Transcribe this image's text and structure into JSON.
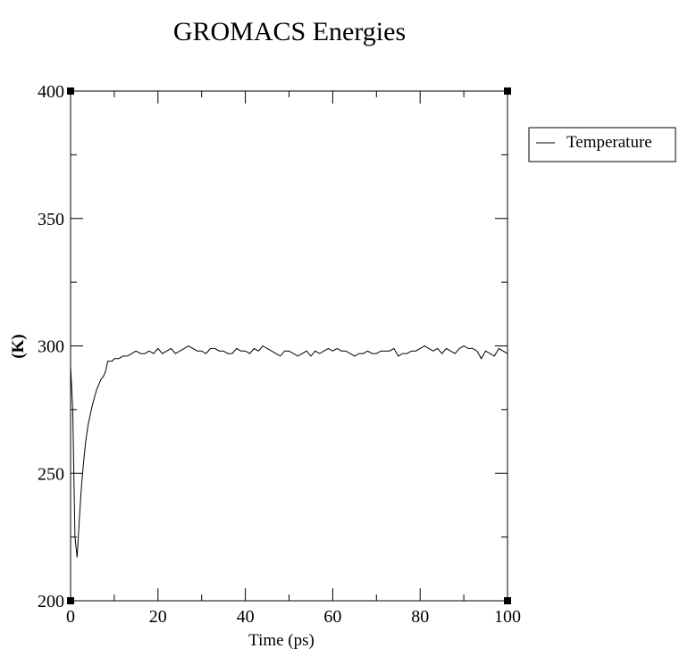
{
  "chart_data": {
    "type": "line",
    "title": "GROMACS Energies",
    "xlabel": "Time (ps)",
    "ylabel": "(K)",
    "xlim": [
      0,
      100
    ],
    "ylim": [
      200,
      400
    ],
    "xticks": [
      0,
      20,
      40,
      60,
      80,
      100
    ],
    "yticks": [
      200,
      250,
      300,
      350,
      400
    ],
    "x_minor_step": 10,
    "y_minor_step": 25,
    "grid": false,
    "legend_position": "right",
    "series": [
      {
        "name": "Temperature",
        "color": "#000000",
        "x": [
          0,
          0.5,
          1,
          1.5,
          2,
          2.5,
          3,
          3.5,
          4,
          4.5,
          5,
          5.5,
          6,
          6.5,
          7,
          7.5,
          8,
          8.5,
          9,
          9.5,
          10,
          11,
          12,
          13,
          14,
          15,
          16,
          17,
          18,
          19,
          20,
          21,
          22,
          23,
          24,
          25,
          26,
          27,
          28,
          29,
          30,
          31,
          32,
          33,
          34,
          35,
          36,
          37,
          38,
          39,
          40,
          41,
          42,
          43,
          44,
          45,
          46,
          47,
          48,
          49,
          50,
          51,
          52,
          53,
          54,
          55,
          56,
          57,
          58,
          59,
          60,
          61,
          62,
          63,
          64,
          65,
          66,
          67,
          68,
          69,
          70,
          71,
          72,
          73,
          74,
          75,
          76,
          77,
          78,
          79,
          80,
          81,
          82,
          83,
          84,
          85,
          86,
          87,
          88,
          89,
          90,
          91,
          92,
          93,
          94,
          95,
          96,
          97,
          98,
          99,
          100
        ],
        "y": [
          292,
          275,
          225,
          217,
          232,
          245,
          255,
          263,
          269,
          273,
          277,
          280,
          283,
          285,
          287,
          288,
          290,
          294,
          294,
          294,
          295,
          295,
          296,
          296,
          297,
          298,
          297,
          297,
          298,
          297,
          299,
          297,
          298,
          299,
          297,
          298,
          299,
          300,
          299,
          298,
          298,
          297,
          299,
          299,
          298,
          298,
          297,
          297,
          299,
          298,
          298,
          297,
          299,
          298,
          300,
          299,
          298,
          297,
          296,
          298,
          298,
          297,
          296,
          297,
          298,
          296,
          298,
          297,
          298,
          299,
          298,
          299,
          298,
          298,
          297,
          296,
          297,
          297,
          298,
          297,
          297,
          298,
          298,
          298,
          299,
          296,
          297,
          297,
          298,
          298,
          299,
          300,
          299,
          298,
          299,
          297,
          299,
          298,
          297,
          299,
          300,
          299,
          299,
          298,
          295,
          298,
          297,
          296,
          299,
          298,
          297
        ]
      }
    ]
  }
}
